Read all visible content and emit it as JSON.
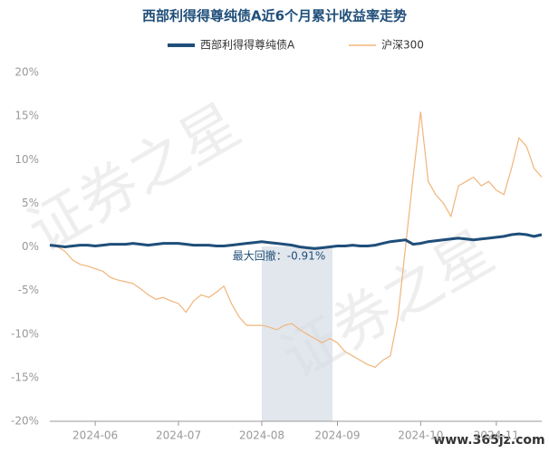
{
  "chart_data": {
    "type": "line",
    "title": "西部利得得尊纯债A近6个月累计收益率走势",
    "annotation": "最大回撤：-0.91%",
    "watermark": "证券之星",
    "site_label": "www.365jz.com",
    "categories": [
      null,
      null,
      null,
      null,
      null,
      null,
      "2024-06",
      null,
      null,
      null,
      null,
      null,
      null,
      null,
      null,
      null,
      null,
      "2024-07",
      null,
      null,
      null,
      null,
      null,
      null,
      null,
      null,
      null,
      null,
      "2024-08",
      null,
      null,
      null,
      null,
      null,
      null,
      null,
      null,
      null,
      "2024-09",
      null,
      null,
      null,
      null,
      null,
      null,
      null,
      null,
      null,
      null,
      "2024-10",
      null,
      null,
      null,
      null,
      null,
      null,
      null,
      null,
      null,
      "2024-11",
      null,
      null,
      null,
      null,
      null,
      null
    ],
    "series": [
      {
        "name": "西部利得得尊纯债A",
        "color": "#1f4e79",
        "values": [
          0.2,
          0.1,
          0.0,
          0.1,
          0.2,
          0.2,
          0.1,
          0.2,
          0.3,
          0.3,
          0.3,
          0.4,
          0.3,
          0.2,
          0.3,
          0.4,
          0.4,
          0.4,
          0.3,
          0.2,
          0.2,
          0.2,
          0.1,
          0.1,
          0.2,
          0.3,
          0.4,
          0.5,
          0.6,
          0.5,
          0.4,
          0.3,
          0.2,
          0.0,
          -0.1,
          -0.2,
          -0.1,
          0.0,
          0.1,
          0.1,
          0.2,
          0.1,
          0.1,
          0.2,
          0.4,
          0.6,
          0.7,
          0.8,
          0.3,
          0.4,
          0.6,
          0.7,
          0.8,
          0.9,
          1.0,
          0.9,
          0.8,
          0.9,
          1.0,
          1.1,
          1.2,
          1.4,
          1.5,
          1.4,
          1.2,
          1.4
        ]
      },
      {
        "name": "沪深300",
        "color": "#f0b57a",
        "values": [
          0.2,
          0.0,
          -0.5,
          -1.5,
          -2.0,
          -2.2,
          -2.5,
          -2.8,
          -3.5,
          -3.8,
          -4.0,
          -4.2,
          -4.8,
          -5.5,
          -6.0,
          -5.8,
          -6.2,
          -6.5,
          -7.5,
          -6.2,
          -5.5,
          -5.8,
          -5.2,
          -4.5,
          -6.5,
          -8.0,
          -9.0,
          -9.0,
          -9.0,
          -9.2,
          -9.5,
          -9.0,
          -8.8,
          -9.5,
          -10.0,
          -10.5,
          -11.0,
          -10.5,
          -11.0,
          -12.0,
          -12.5,
          -13.0,
          -13.5,
          -13.8,
          -13.0,
          -12.5,
          -8.0,
          0.0,
          8.0,
          15.5,
          7.5,
          6.0,
          5.0,
          3.5,
          7.0,
          7.5,
          8.0,
          7.0,
          7.5,
          6.5,
          6.0,
          9.0,
          12.5,
          11.5,
          9.0,
          8.0
        ]
      }
    ],
    "ylim": [
      -20,
      20
    ],
    "yticks": [
      {
        "value": 20,
        "label": "20%"
      },
      {
        "value": 15,
        "label": "15%"
      },
      {
        "value": 10,
        "label": "10%"
      },
      {
        "value": 5,
        "label": "5%"
      },
      {
        "value": 0,
        "label": "0%"
      },
      {
        "value": -5,
        "label": "-5%"
      },
      {
        "value": -10,
        "label": "-10%"
      },
      {
        "value": -15,
        "label": "-15%"
      },
      {
        "value": -20,
        "label": "-20%"
      }
    ],
    "grid": false
  }
}
